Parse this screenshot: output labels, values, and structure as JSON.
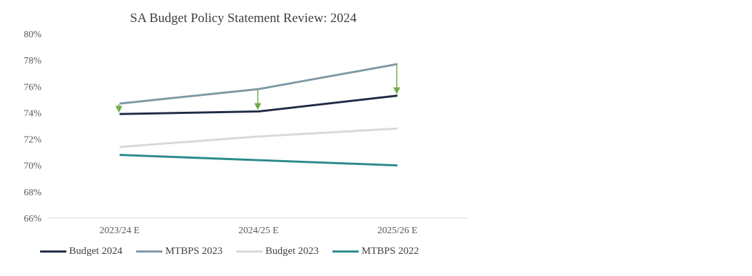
{
  "chart_data": {
    "type": "line",
    "title": "SA Budget Policy Statement Review: 2024",
    "categories": [
      "2023/24 E",
      "2024/25 E",
      "2025/26 E"
    ],
    "ylim": [
      66,
      80
    ],
    "yticks": [
      66,
      68,
      70,
      72,
      74,
      76,
      78,
      80
    ],
    "ytick_labels": [
      "66%",
      "68%",
      "70%",
      "72%",
      "74%",
      "76%",
      "78%",
      "80%"
    ],
    "grid": false,
    "legend_position": "bottom",
    "series": [
      {
        "name": "Budget 2024",
        "values": [
          73.9,
          74.1,
          75.3
        ],
        "color": "#1f2a44"
      },
      {
        "name": "MTBPS 2023",
        "values": [
          74.7,
          75.8,
          77.7
        ],
        "color": "#7f98a5"
      },
      {
        "name": "Budget 2023",
        "values": [
          71.4,
          72.2,
          72.8
        ],
        "color": "#d9d9d4"
      },
      {
        "name": "MTBPS 2022",
        "values": [
          70.8,
          70.4,
          70.0
        ],
        "color": "#2a8a8c"
      }
    ],
    "annotations": {
      "arrow_color": "#70ad47",
      "arrows": [
        {
          "category": "2023/24 E",
          "from": 74.7,
          "to": 73.9
        },
        {
          "category": "2024/25 E",
          "from": 75.8,
          "to": 74.1
        },
        {
          "category": "2025/26 E",
          "from": 77.7,
          "to": 75.3
        }
      ]
    }
  }
}
